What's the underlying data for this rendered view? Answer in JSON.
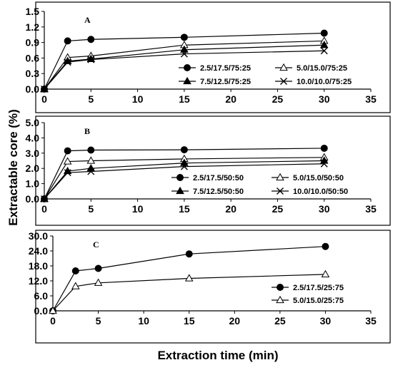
{
  "axes": {
    "xlabel": "Extraction time (min)",
    "ylabel": "Extractable core (%)"
  },
  "chart_data": [
    {
      "type": "line",
      "panel_label": "A",
      "xlim": [
        0,
        35
      ],
      "ylim": [
        0,
        1.5
      ],
      "x_ticks": [
        "0",
        "5",
        "10",
        "15",
        "20",
        "25",
        "30",
        "35"
      ],
      "y_ticks": [
        "0.0",
        "0.3",
        "0.6",
        "0.9",
        "1.2",
        "1.5"
      ],
      "x": [
        0,
        2.5,
        5,
        15,
        30
      ],
      "series": [
        {
          "name": "2.5/17.5/75:25",
          "marker": "circle",
          "values": [
            0.0,
            0.93,
            0.96,
            1.0,
            1.08
          ]
        },
        {
          "name": "5.0/15.0/75:25",
          "marker": "open-triangle",
          "values": [
            0.0,
            0.61,
            0.64,
            0.85,
            0.93
          ]
        },
        {
          "name": "7.5/12.5/75:25",
          "marker": "filled-triangle",
          "values": [
            0.0,
            0.54,
            0.58,
            0.76,
            0.85
          ]
        },
        {
          "name": "10.0/10.0/75:25",
          "marker": "x",
          "values": [
            0.0,
            0.52,
            0.57,
            0.68,
            0.74
          ]
        }
      ],
      "legend": "bottom-right, 2 columns"
    },
    {
      "type": "line",
      "panel_label": "B",
      "xlim": [
        0,
        35
      ],
      "ylim": [
        0,
        5.0
      ],
      "x_ticks": [
        "0",
        "5",
        "10",
        "15",
        "20",
        "25",
        "30",
        "35"
      ],
      "y_ticks": [
        "0.0",
        "1.0",
        "2.0",
        "3.0",
        "4.0",
        "5.0"
      ],
      "x": [
        0,
        2.5,
        5,
        15,
        30
      ],
      "series": [
        {
          "name": "2.5/17.5/50:50",
          "marker": "circle",
          "values": [
            0.0,
            3.15,
            3.2,
            3.22,
            3.32
          ]
        },
        {
          "name": "5.0/15.0/50:50",
          "marker": "open-triangle",
          "values": [
            0.0,
            2.45,
            2.5,
            2.62,
            2.72
          ]
        },
        {
          "name": "7.5/12.5/50:50",
          "marker": "filled-triangle",
          "values": [
            0.0,
            1.82,
            2.0,
            2.35,
            2.5
          ]
        },
        {
          "name": "10.0/10.0/50:50",
          "marker": "x",
          "values": [
            0.0,
            1.72,
            1.8,
            2.12,
            2.3
          ]
        }
      ],
      "legend": "bottom-right, 2 columns"
    },
    {
      "type": "line",
      "panel_label": "C",
      "xlim": [
        0,
        35
      ],
      "ylim": [
        0,
        30.0
      ],
      "x_ticks": [
        "0",
        "5",
        "10",
        "15",
        "20",
        "25",
        "30",
        "35"
      ],
      "y_ticks": [
        "0.0",
        "6.0",
        "12.0",
        "18.0",
        "24.0",
        "30.0"
      ],
      "x": [
        0,
        2.5,
        5,
        15,
        30
      ],
      "series": [
        {
          "name": "2.5/17.5/25:75",
          "marker": "circle",
          "values": [
            0.0,
            16.0,
            17.0,
            22.8,
            25.8
          ]
        },
        {
          "name": "5.0/15.0/25:75",
          "marker": "open-triangle",
          "values": [
            0.0,
            9.8,
            11.2,
            13.0,
            14.6
          ]
        }
      ],
      "legend": "bottom-right, 1 column"
    }
  ]
}
